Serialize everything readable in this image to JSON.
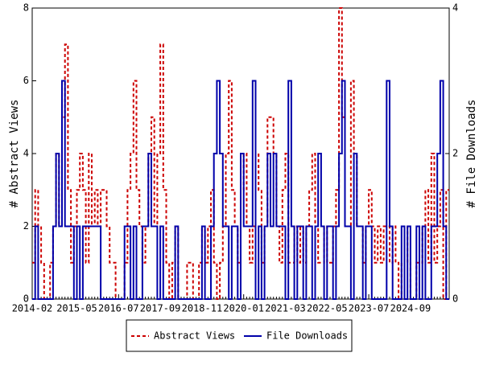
{
  "chart_data": {
    "type": "step",
    "categories": [
      "2014-02",
      null,
      null,
      null,
      null,
      null,
      null,
      null,
      null,
      null,
      null,
      null,
      null,
      null,
      null,
      "2015-05",
      null,
      null,
      null,
      null,
      null,
      null,
      null,
      null,
      null,
      null,
      null,
      null,
      null,
      "2016-07",
      null,
      null,
      null,
      null,
      null,
      null,
      null,
      null,
      null,
      null,
      null,
      null,
      null,
      "2017-09",
      null,
      null,
      null,
      null,
      null,
      null,
      null,
      null,
      null,
      null,
      null,
      null,
      null,
      "2018-11",
      null,
      null,
      null,
      null,
      null,
      null,
      null,
      null,
      null,
      null,
      null,
      null,
      null,
      "2020-01",
      null,
      null,
      null,
      null,
      null,
      null,
      null,
      null,
      null,
      null,
      null,
      null,
      null,
      "2021-03",
      null,
      null,
      null,
      null,
      null,
      null,
      null,
      null,
      null,
      null,
      null,
      null,
      null,
      "2022-05",
      null,
      null,
      null,
      null,
      null,
      null,
      null,
      null,
      null,
      null,
      null,
      null,
      null,
      "2023-07",
      null,
      null,
      null,
      null,
      null,
      null,
      null,
      null,
      null,
      null,
      null,
      null,
      null,
      "2024-09",
      null,
      null,
      null,
      null,
      null,
      null,
      null,
      null,
      null,
      null,
      null,
      null
    ],
    "series": [
      {
        "name": "Abstract Views",
        "color": "#cc0000",
        "dash": true,
        "values": [
          1,
          3,
          2,
          1,
          0,
          0,
          1,
          2,
          4,
          2,
          5,
          7,
          3,
          1,
          2,
          3,
          4,
          3,
          1,
          4,
          2,
          3,
          2,
          3,
          3,
          2,
          1,
          1,
          0,
          0,
          0,
          1,
          3,
          4,
          6,
          3,
          2,
          1,
          2,
          4,
          5,
          2,
          4,
          7,
          3,
          1,
          0,
          1,
          2,
          0,
          0,
          0,
          1,
          1,
          0,
          0,
          1,
          2,
          1,
          2,
          3,
          1,
          0,
          1,
          2,
          4,
          6,
          3,
          2,
          1,
          3,
          4,
          2,
          1,
          2,
          4,
          3,
          1,
          2,
          5,
          5,
          4,
          2,
          1,
          3,
          4,
          1,
          1,
          2,
          1,
          2,
          1,
          2,
          3,
          4,
          2,
          1,
          1,
          2,
          1,
          1,
          2,
          3,
          8,
          5,
          2,
          2,
          6,
          4,
          2,
          2,
          1,
          2,
          3,
          2,
          1,
          2,
          1,
          2,
          2,
          1,
          2,
          1,
          0,
          1,
          2,
          1,
          0,
          0,
          1,
          1,
          2,
          3,
          1,
          4,
          1,
          2,
          3,
          0,
          3
        ]
      },
      {
        "name": "File Downloads",
        "color": "#0000aa",
        "axis": "y2",
        "values": [
          0,
          1,
          0,
          0,
          0,
          0,
          0,
          1,
          2,
          1,
          3,
          1,
          1,
          1,
          0,
          1,
          0,
          1,
          1,
          1,
          1,
          1,
          1,
          0,
          0,
          0,
          0,
          0,
          0,
          0,
          0,
          1,
          1,
          0,
          1,
          0,
          0,
          1,
          1,
          2,
          1,
          1,
          0,
          1,
          0,
          0,
          0,
          0,
          1,
          0,
          0,
          0,
          0,
          0,
          0,
          0,
          0,
          1,
          0,
          0,
          1,
          2,
          3,
          2,
          1,
          1,
          0,
          1,
          1,
          0,
          2,
          1,
          1,
          1,
          3,
          0,
          1,
          0,
          1,
          2,
          1,
          2,
          1,
          1,
          1,
          0,
          3,
          1,
          0,
          1,
          1,
          0,
          1,
          1,
          0,
          1,
          2,
          1,
          0,
          1,
          1,
          0,
          1,
          2,
          3,
          1,
          1,
          0,
          2,
          1,
          1,
          0,
          1,
          1,
          0,
          0,
          0,
          0,
          0,
          3,
          1,
          0,
          0,
          0,
          1,
          0,
          1,
          0,
          0,
          1,
          0,
          1,
          0,
          0,
          1,
          1,
          2,
          3,
          1,
          0
        ]
      }
    ],
    "ylabel": "# Abstract Views",
    "y2label": "# File Downloads",
    "ylim": [
      0,
      8
    ],
    "yticks": [
      0,
      2,
      4,
      6,
      8
    ],
    "y2lim": [
      0,
      4
    ],
    "y2ticks": [
      0,
      2,
      4
    ],
    "legend": "bottom"
  }
}
